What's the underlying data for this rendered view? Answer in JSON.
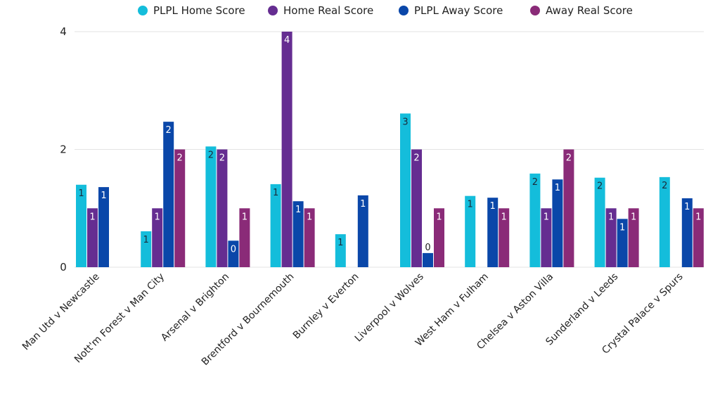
{
  "chart_data": {
    "type": "bar",
    "title": "",
    "xlabel": "",
    "ylabel": "",
    "ylim": [
      0,
      4
    ],
    "yticks": [
      0,
      2,
      4
    ],
    "grid": true,
    "legend_position": "top-center",
    "categories": [
      "Man Utd v Newcastle",
      "Nott'm Forest v Man City",
      "Arsenal v Brighton",
      "Brentford v Bournemouth",
      "Burnley v Everton",
      "Liverpool v Wolves",
      "West Ham v Fulham",
      "Chelsea v Aston Villa",
      "Sunderland v Leeds",
      "Crystal Palace v Spurs"
    ],
    "series": [
      {
        "name": "PLPL Home Score",
        "color": "#14BDDB",
        "label_color": "#1a2a3a",
        "values": [
          1.4,
          0.61,
          2.05,
          1.41,
          0.56,
          2.61,
          1.21,
          1.59,
          1.52,
          1.53
        ],
        "labels": [
          "1",
          "1",
          "2",
          "1",
          "1",
          "3",
          "1",
          "2",
          "2",
          "2"
        ]
      },
      {
        "name": "Home Real Score",
        "color": "#652D91",
        "label_color": "#ffffff",
        "values": [
          1,
          1,
          2,
          4,
          0,
          2,
          0,
          1,
          1,
          0
        ],
        "labels": [
          "1",
          "1",
          "2",
          "4",
          "",
          "2",
          "",
          "1",
          "1",
          ""
        ]
      },
      {
        "name": "PLPL Away Score",
        "color": "#0A47A9",
        "label_color": "#ffffff",
        "values": [
          1.36,
          2.47,
          0.45,
          1.12,
          1.22,
          0.24,
          1.18,
          1.49,
          0.82,
          1.17
        ],
        "labels": [
          "1",
          "2",
          "0",
          "1",
          "1",
          "0",
          "1",
          "1",
          "1",
          "1"
        ]
      },
      {
        "name": "Away Real Score",
        "color": "#8A2B78",
        "label_color": "#ffffff",
        "values": [
          0,
          2,
          1,
          1,
          0,
          1,
          1,
          2,
          1,
          1
        ],
        "labels": [
          "",
          "2",
          "1",
          "1",
          "",
          "1",
          "1",
          "2",
          "1",
          "1"
        ]
      }
    ]
  }
}
